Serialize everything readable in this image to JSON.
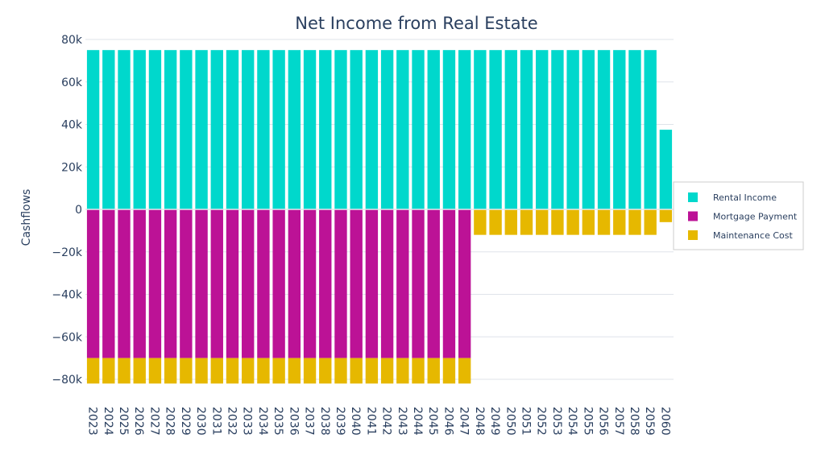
{
  "chart_data": {
    "type": "bar",
    "barmode": "relative",
    "title": "Net Income from Real Estate",
    "xlabel": "",
    "ylabel": "Cashflows",
    "ylim": [
      -82000,
      80000
    ],
    "yticks": [
      80000,
      60000,
      40000,
      20000,
      0,
      -20000,
      -40000,
      -60000,
      -80000
    ],
    "ytick_labels": [
      "80k",
      "60k",
      "40k",
      "20k",
      "0",
      "−20k",
      "−40k",
      "−60k",
      "−80k"
    ],
    "grid": true,
    "legend_position": "right",
    "categories": [
      "2023",
      "2024",
      "2025",
      "2026",
      "2027",
      "2028",
      "2029",
      "2030",
      "2031",
      "2032",
      "2033",
      "2034",
      "2035",
      "2036",
      "2037",
      "2038",
      "2039",
      "2040",
      "2041",
      "2042",
      "2043",
      "2044",
      "2045",
      "2046",
      "2047",
      "2048",
      "2049",
      "2050",
      "2051",
      "2052",
      "2053",
      "2054",
      "2055",
      "2056",
      "2057",
      "2058",
      "2059",
      "2060"
    ],
    "series": [
      {
        "name": "Rental Income",
        "color": "#00d8cc",
        "values": [
          75000,
          75000,
          75000,
          75000,
          75000,
          75000,
          75000,
          75000,
          75000,
          75000,
          75000,
          75000,
          75000,
          75000,
          75000,
          75000,
          75000,
          75000,
          75000,
          75000,
          75000,
          75000,
          75000,
          75000,
          75000,
          75000,
          75000,
          75000,
          75000,
          75000,
          75000,
          75000,
          75000,
          75000,
          75000,
          75000,
          75000,
          37500
        ]
      },
      {
        "name": "Mortgage Payment",
        "color": "#bc1296",
        "values": [
          -70000,
          -70000,
          -70000,
          -70000,
          -70000,
          -70000,
          -70000,
          -70000,
          -70000,
          -70000,
          -70000,
          -70000,
          -70000,
          -70000,
          -70000,
          -70000,
          -70000,
          -70000,
          -70000,
          -70000,
          -70000,
          -70000,
          -70000,
          -70000,
          -70000,
          0,
          0,
          0,
          0,
          0,
          0,
          0,
          0,
          0,
          0,
          0,
          0,
          0
        ]
      },
      {
        "name": "Maintenance Cost",
        "color": "#e6b800",
        "values": [
          -12000,
          -12000,
          -12000,
          -12000,
          -12000,
          -12000,
          -12000,
          -12000,
          -12000,
          -12000,
          -12000,
          -12000,
          -12000,
          -12000,
          -12000,
          -12000,
          -12000,
          -12000,
          -12000,
          -12000,
          -12000,
          -12000,
          -12000,
          -12000,
          -12000,
          -12000,
          -12000,
          -12000,
          -12000,
          -12000,
          -12000,
          -12000,
          -12000,
          -12000,
          -12000,
          -12000,
          -12000,
          -6000
        ]
      }
    ]
  }
}
